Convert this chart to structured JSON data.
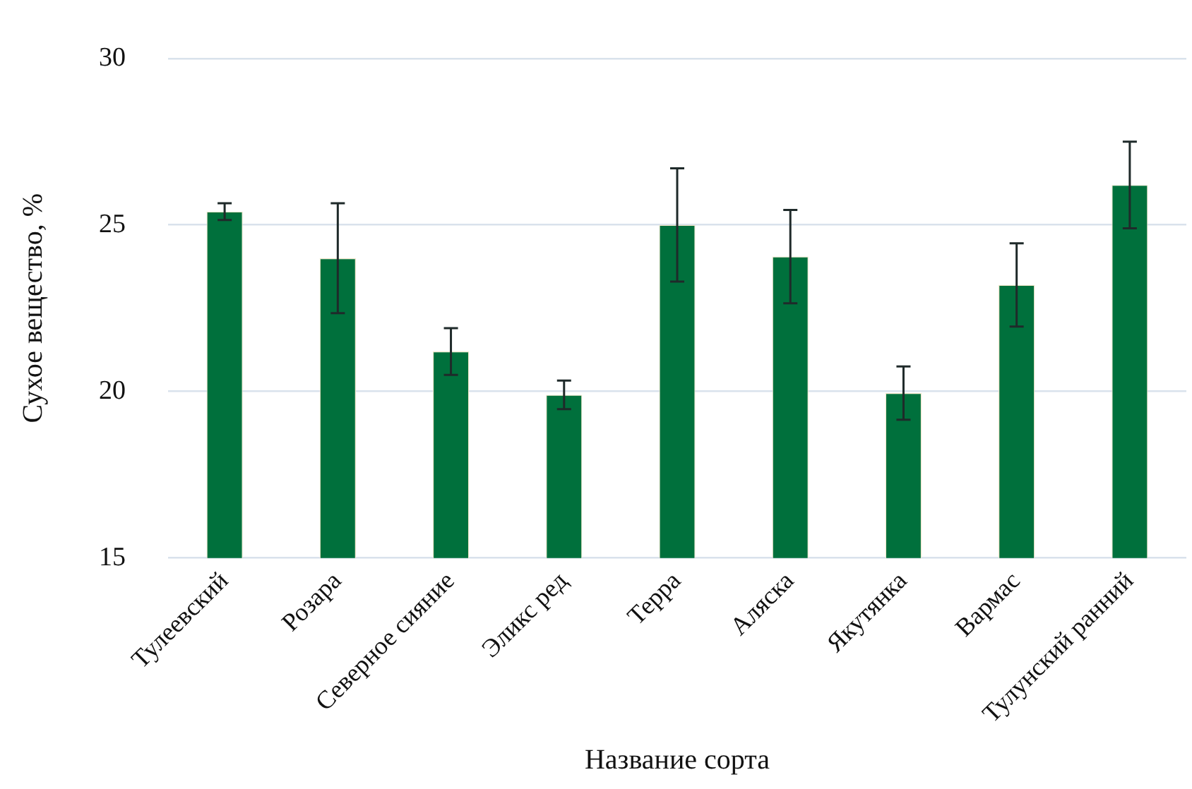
{
  "chart_data": {
    "type": "bar",
    "xlabel": "Название сорта",
    "ylabel": "Сухое вещество, %",
    "categories": [
      "Тулеевский",
      "Розара",
      "Северное сияние",
      "Эликс ред",
      "Терра",
      "Аляска",
      "Якутянка",
      "Вармас",
      "Тулунский ранний"
    ],
    "values": [
      25.4,
      24.0,
      21.2,
      19.9,
      25.0,
      24.05,
      19.95,
      23.2,
      26.2
    ],
    "errors": [
      0.25,
      1.65,
      0.7,
      0.43,
      1.7,
      1.4,
      0.8,
      1.25,
      1.3
    ],
    "color": "#00703c",
    "ylim": [
      15,
      30
    ],
    "yticks": [
      15,
      20,
      25,
      30
    ],
    "grid": "y",
    "legend": false
  }
}
